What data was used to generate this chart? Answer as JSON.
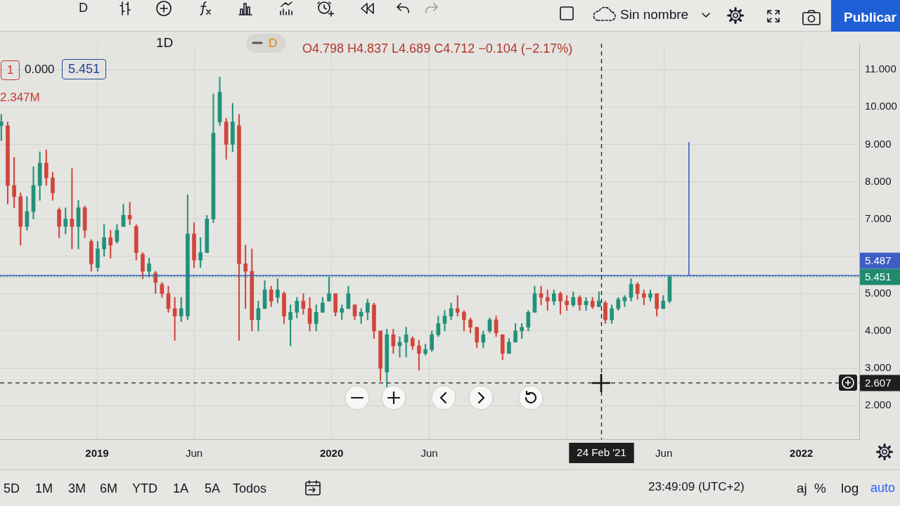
{
  "chart_data": {
    "type": "candlestick",
    "x": [
      "2018-08-05",
      "2018-08-15",
      "2018-08-25",
      "2018-09-04",
      "2018-09-14",
      "2018-09-24",
      "2018-10-04",
      "2018-10-14",
      "2018-10-24",
      "2018-11-03",
      "2018-11-13",
      "2018-11-23",
      "2018-12-03",
      "2018-12-13",
      "2018-12-23",
      "2019-01-02",
      "2019-01-12",
      "2019-01-22",
      "2019-02-01",
      "2019-02-11",
      "2019-02-21",
      "2019-03-03",
      "2019-03-13",
      "2019-03-23",
      "2019-04-02",
      "2019-04-12",
      "2019-04-22",
      "2019-05-02",
      "2019-05-12",
      "2019-05-22",
      "2019-06-01",
      "2019-06-11",
      "2019-06-21",
      "2019-07-01",
      "2019-07-11",
      "2019-07-21",
      "2019-07-31",
      "2019-08-10",
      "2019-08-20",
      "2019-08-30",
      "2019-09-09",
      "2019-09-19",
      "2019-09-29",
      "2019-10-09",
      "2019-10-19",
      "2019-10-29",
      "2019-11-08",
      "2019-11-18",
      "2019-11-28",
      "2019-12-08",
      "2019-12-18",
      "2019-12-28",
      "2020-01-07",
      "2020-01-17",
      "2020-01-27",
      "2020-02-06",
      "2020-02-16",
      "2020-02-26",
      "2020-03-07",
      "2020-03-17",
      "2020-03-27",
      "2020-04-06",
      "2020-04-16",
      "2020-04-26",
      "2020-05-06",
      "2020-05-16",
      "2020-05-26",
      "2020-06-05",
      "2020-06-15",
      "2020-06-25",
      "2020-07-05",
      "2020-07-15",
      "2020-07-25",
      "2020-08-04",
      "2020-08-14",
      "2020-08-24",
      "2020-09-03",
      "2020-09-13",
      "2020-09-23",
      "2020-10-03",
      "2020-10-13",
      "2020-10-23",
      "2020-11-02",
      "2020-11-12",
      "2020-11-22",
      "2020-12-02",
      "2020-12-12",
      "2020-12-22",
      "2021-01-01",
      "2021-01-11",
      "2021-01-21",
      "2021-01-31",
      "2021-02-10",
      "2021-02-20",
      "2021-03-02",
      "2021-03-12",
      "2021-03-22",
      "2021-04-01",
      "2021-04-11",
      "2021-04-21",
      "2021-05-01",
      "2021-05-11",
      "2021-05-21",
      "2021-05-31",
      "2021-06-10"
    ],
    "ohlc": [
      [
        9.5,
        9.8,
        9.1,
        9.6
      ],
      [
        9.5,
        9.6,
        7.4,
        7.9
      ],
      [
        7.9,
        8.65,
        7.3,
        7.6
      ],
      [
        7.6,
        7.7,
        6.3,
        6.8
      ],
      [
        6.8,
        7.6,
        6.7,
        7.2
      ],
      [
        7.2,
        8.4,
        7.0,
        7.9
      ],
      [
        7.9,
        8.8,
        7.5,
        8.5
      ],
      [
        8.5,
        8.85,
        7.9,
        8.1
      ],
      [
        8.1,
        8.25,
        7.5,
        7.7
      ],
      [
        7.25,
        7.3,
        6.5,
        6.8
      ],
      [
        6.8,
        7.3,
        6.6,
        7.0
      ],
      [
        7.0,
        8.35,
        6.2,
        6.8
      ],
      [
        6.8,
        7.5,
        6.2,
        7.3
      ],
      [
        7.3,
        7.35,
        6.5,
        6.7
      ],
      [
        6.4,
        6.45,
        5.6,
        5.8
      ],
      [
        5.7,
        6.4,
        5.6,
        6.2
      ],
      [
        6.2,
        6.85,
        6.0,
        6.5
      ],
      [
        6.5,
        6.7,
        5.95,
        6.3
      ],
      [
        6.4,
        6.85,
        6.35,
        6.7
      ],
      [
        6.8,
        7.4,
        6.8,
        7.1
      ],
      [
        7.1,
        7.45,
        6.85,
        7.0
      ],
      [
        6.8,
        6.85,
        5.9,
        6.1
      ],
      [
        6.05,
        6.1,
        5.4,
        5.6
      ],
      [
        5.6,
        5.95,
        5.45,
        5.8
      ],
      [
        5.55,
        5.6,
        5.0,
        5.3
      ],
      [
        5.25,
        5.3,
        4.9,
        5.0
      ],
      [
        5.0,
        5.2,
        4.5,
        4.6
      ],
      [
        4.6,
        4.9,
        3.75,
        4.4
      ],
      [
        4.4,
        4.9,
        4.25,
        4.6
      ],
      [
        4.4,
        7.65,
        4.3,
        6.6
      ],
      [
        6.6,
        6.9,
        5.7,
        5.9
      ],
      [
        5.9,
        6.5,
        5.7,
        6.1
      ],
      [
        6.1,
        7.1,
        6.1,
        7.0
      ],
      [
        7.0,
        10.35,
        6.9,
        9.3
      ],
      [
        9.6,
        10.8,
        9.5,
        10.4
      ],
      [
        9.6,
        9.7,
        8.6,
        9.0
      ],
      [
        9.0,
        10.1,
        8.8,
        9.6
      ],
      [
        9.5,
        9.8,
        3.75,
        5.8
      ],
      [
        5.8,
        6.3,
        4.6,
        5.6
      ],
      [
        5.6,
        6.2,
        4.0,
        4.3
      ],
      [
        4.3,
        4.8,
        4.0,
        4.6
      ],
      [
        4.6,
        5.35,
        4.6,
        5.1
      ],
      [
        5.1,
        5.2,
        4.65,
        4.8
      ],
      [
        4.9,
        5.4,
        4.75,
        5.1
      ],
      [
        5.0,
        5.05,
        4.2,
        4.4
      ],
      [
        4.3,
        4.7,
        3.6,
        4.5
      ],
      [
        4.5,
        4.9,
        4.35,
        4.8
      ],
      [
        4.8,
        5.0,
        4.45,
        4.6
      ],
      [
        4.6,
        4.9,
        4.0,
        4.2
      ],
      [
        4.2,
        4.7,
        4.0,
        4.5
      ],
      [
        4.5,
        4.9,
        4.5,
        4.75
      ],
      [
        4.8,
        5.45,
        4.8,
        5.0
      ],
      [
        5.0,
        5.0,
        4.4,
        4.5
      ],
      [
        4.5,
        4.7,
        4.3,
        4.6
      ],
      [
        4.6,
        5.2,
        4.6,
        5.0
      ],
      [
        4.7,
        4.7,
        4.3,
        4.4
      ],
      [
        4.4,
        4.6,
        4.2,
        4.5
      ],
      [
        4.5,
        4.85,
        4.3,
        4.75
      ],
      [
        4.7,
        4.75,
        3.8,
        4.0
      ],
      [
        4.0,
        4.0,
        2.66,
        3.0
      ],
      [
        2.9,
        4.05,
        2.5,
        3.9
      ],
      [
        3.9,
        4.05,
        3.4,
        3.6
      ],
      [
        3.6,
        3.85,
        3.3,
        3.7
      ],
      [
        3.7,
        4.1,
        3.3,
        3.9
      ],
      [
        3.8,
        3.85,
        3.5,
        3.6
      ],
      [
        3.6,
        3.75,
        2.95,
        3.4
      ],
      [
        3.4,
        3.65,
        3.35,
        3.5
      ],
      [
        3.5,
        4.0,
        3.45,
        3.9
      ],
      [
        3.9,
        4.4,
        3.85,
        4.2
      ],
      [
        4.2,
        4.55,
        4.0,
        4.4
      ],
      [
        4.4,
        4.75,
        4.3,
        4.6
      ],
      [
        4.6,
        4.95,
        4.4,
        4.5
      ],
      [
        4.5,
        4.55,
        4.0,
        4.3
      ],
      [
        4.3,
        4.35,
        3.95,
        4.1
      ],
      [
        4.1,
        4.1,
        3.55,
        3.7
      ],
      [
        3.7,
        4.0,
        3.55,
        3.9
      ],
      [
        4.0,
        4.35,
        3.95,
        4.3
      ],
      [
        4.3,
        4.4,
        3.85,
        3.95
      ],
      [
        3.9,
        3.9,
        3.23,
        3.4
      ],
      [
        3.4,
        3.8,
        3.4,
        3.7
      ],
      [
        3.7,
        4.2,
        3.7,
        4.0
      ],
      [
        4.0,
        4.2,
        3.8,
        4.1
      ],
      [
        4.1,
        4.55,
        4.0,
        4.5
      ],
      [
        4.5,
        5.2,
        4.5,
        5.0
      ],
      [
        5.0,
        5.2,
        4.7,
        4.9
      ],
      [
        4.9,
        5.1,
        4.55,
        4.8
      ],
      [
        4.8,
        5.1,
        4.7,
        5.0
      ],
      [
        5.0,
        5.05,
        4.45,
        4.8
      ],
      [
        4.8,
        4.95,
        4.55,
        4.7
      ],
      [
        4.7,
        5.05,
        4.65,
        4.9
      ],
      [
        4.9,
        4.95,
        4.55,
        4.7
      ],
      [
        4.7,
        4.9,
        4.55,
        4.8
      ],
      [
        4.8,
        4.9,
        4.6,
        4.65
      ],
      [
        4.65,
        5.05,
        4.65,
        4.8
      ],
      [
        4.75,
        4.8,
        4.2,
        4.3
      ],
      [
        4.3,
        4.7,
        4.2,
        4.6
      ],
      [
        4.6,
        4.9,
        4.55,
        4.85
      ],
      [
        4.8,
        4.95,
        4.65,
        4.9
      ],
      [
        4.9,
        5.4,
        4.8,
        5.25
      ],
      [
        5.25,
        5.3,
        4.85,
        5.0
      ],
      [
        5.0,
        5.1,
        4.7,
        4.9
      ],
      [
        4.9,
        5.1,
        4.8,
        5.0
      ],
      [
        5.0,
        5.0,
        4.4,
        4.6
      ],
      [
        4.6,
        4.95,
        4.6,
        4.8
      ],
      [
        4.8,
        5.451,
        4.75,
        5.451
      ]
    ],
    "colors": [
      "#22917a",
      "#d2453a",
      "#d2453a",
      "#d2453a",
      "#22917a",
      "#22917a",
      "#22917a",
      "#d2453a",
      "#d2453a",
      "#d2453a",
      "#22917a",
      "#d2453a",
      "#22917a",
      "#d2453a",
      "#d2453a",
      "#22917a",
      "#22917a",
      "#d2453a",
      "#22917a",
      "#22917a",
      "#d2453a",
      "#d2453a",
      "#d2453a",
      "#22917a",
      "#d2453a",
      "#d2453a",
      "#d2453a",
      "#d2453a",
      "#22917a",
      "#22917a",
      "#d2453a",
      "#22917a",
      "#22917a",
      "#22917a",
      "#22917a",
      "#d2453a",
      "#22917a",
      "#d2453a",
      "#d2453a",
      "#d2453a",
      "#22917a",
      "#22917a",
      "#d2453a",
      "#22917a",
      "#d2453a",
      "#22917a",
      "#22917a",
      "#d2453a",
      "#d2453a",
      "#22917a",
      "#22917a",
      "#22917a",
      "#d2453a",
      "#22917a",
      "#22917a",
      "#d2453a",
      "#22917a",
      "#22917a",
      "#d2453a",
      "#d2453a",
      "#22917a",
      "#d2453a",
      "#22917a",
      "#22917a",
      "#d2453a",
      "#d2453a",
      "#22917a",
      "#22917a",
      "#22917a",
      "#22917a",
      "#22917a",
      "#d2453a",
      "#d2453a",
      "#d2453a",
      "#d2453a",
      "#22917a",
      "#22917a",
      "#d2453a",
      "#d2453a",
      "#22917a",
      "#22917a",
      "#22917a",
      "#22917a",
      "#22917a",
      "#d2453a",
      "#d2453a",
      "#22917a",
      "#d2453a",
      "#d2453a",
      "#22917a",
      "#d2453a",
      "#22917a",
      "#d2453a",
      "#22917a",
      "#d2453a",
      "#22917a",
      "#22917a",
      "#22917a",
      "#22917a",
      "#d2453a",
      "#d2453a",
      "#22917a",
      "#d2453a",
      "#22917a",
      "#22917a"
    ],
    "series": [
      {
        "type": "line",
        "x": [
          "2021-07-10",
          "2021-07-10"
        ],
        "values": [
          5.49,
          9.05
        ],
        "color": "#3f5ec4"
      }
    ],
    "xlim": [
      "2018-08-03",
      "2022-04-01"
    ],
    "xticks": [
      {
        "value": "2019-01-01",
        "label": "2019"
      },
      {
        "value": "2019-06-01",
        "label": "Jun"
      },
      {
        "value": "2020-01-01",
        "label": "2020"
      },
      {
        "value": "2020-06-01",
        "label": "Jun"
      },
      {
        "value": "2021-01-01",
        "label": null
      },
      {
        "value": "2021-06-01",
        "label": "Jun"
      },
      {
        "value": "2022-01-01",
        "label": "2022"
      }
    ],
    "ylim": [
      1.1,
      11.7
    ],
    "yticks": [
      {
        "value": 2,
        "label": "2.000"
      },
      {
        "value": 3,
        "label": "3.000"
      },
      {
        "value": 4,
        "label": "4.000"
      },
      {
        "value": 5,
        "label": "5.000"
      },
      {
        "value": 6,
        "label": null
      },
      {
        "value": 7,
        "label": "7.000"
      },
      {
        "value": 8,
        "label": "8.000"
      },
      {
        "value": 9,
        "label": "9.000"
      },
      {
        "value": 10,
        "label": "10.000"
      },
      {
        "value": 11,
        "label": "11.000"
      }
    ],
    "grid": true,
    "ref_lines": [
      {
        "axis": "y",
        "value": 5.487,
        "label": "5.487",
        "color": "#3f5ec4"
      },
      {
        "axis": "y",
        "value": 5.451,
        "label": "5.451",
        "color": "#1f8a6e",
        "line_style": "dotted"
      },
      {
        "axis": "y",
        "value": 2.607,
        "label": "2.607",
        "color": "#1e1e1e",
        "line_style": "dashed"
      },
      {
        "axis": "x",
        "value": "2021-02-24",
        "label": "24 Feb '21",
        "color": "#1e1e1e",
        "line_style": "dashed"
      }
    ],
    "annotations": [
      "D",
      "Sin nombre",
      "Publicar",
      "1D",
      "D",
      "O4.798 H4.837 L4.689 C4.712 −0.104 (−2.17%)",
      "1",
      "0.000",
      "5.451",
      "2.347M",
      "5D",
      "1M",
      "3M",
      "6M",
      "YTD",
      "1A",
      "5A",
      "Todos",
      "23:49:09 (UTC+2)",
      "aj",
      "%",
      "log",
      "auto"
    ]
  }
}
